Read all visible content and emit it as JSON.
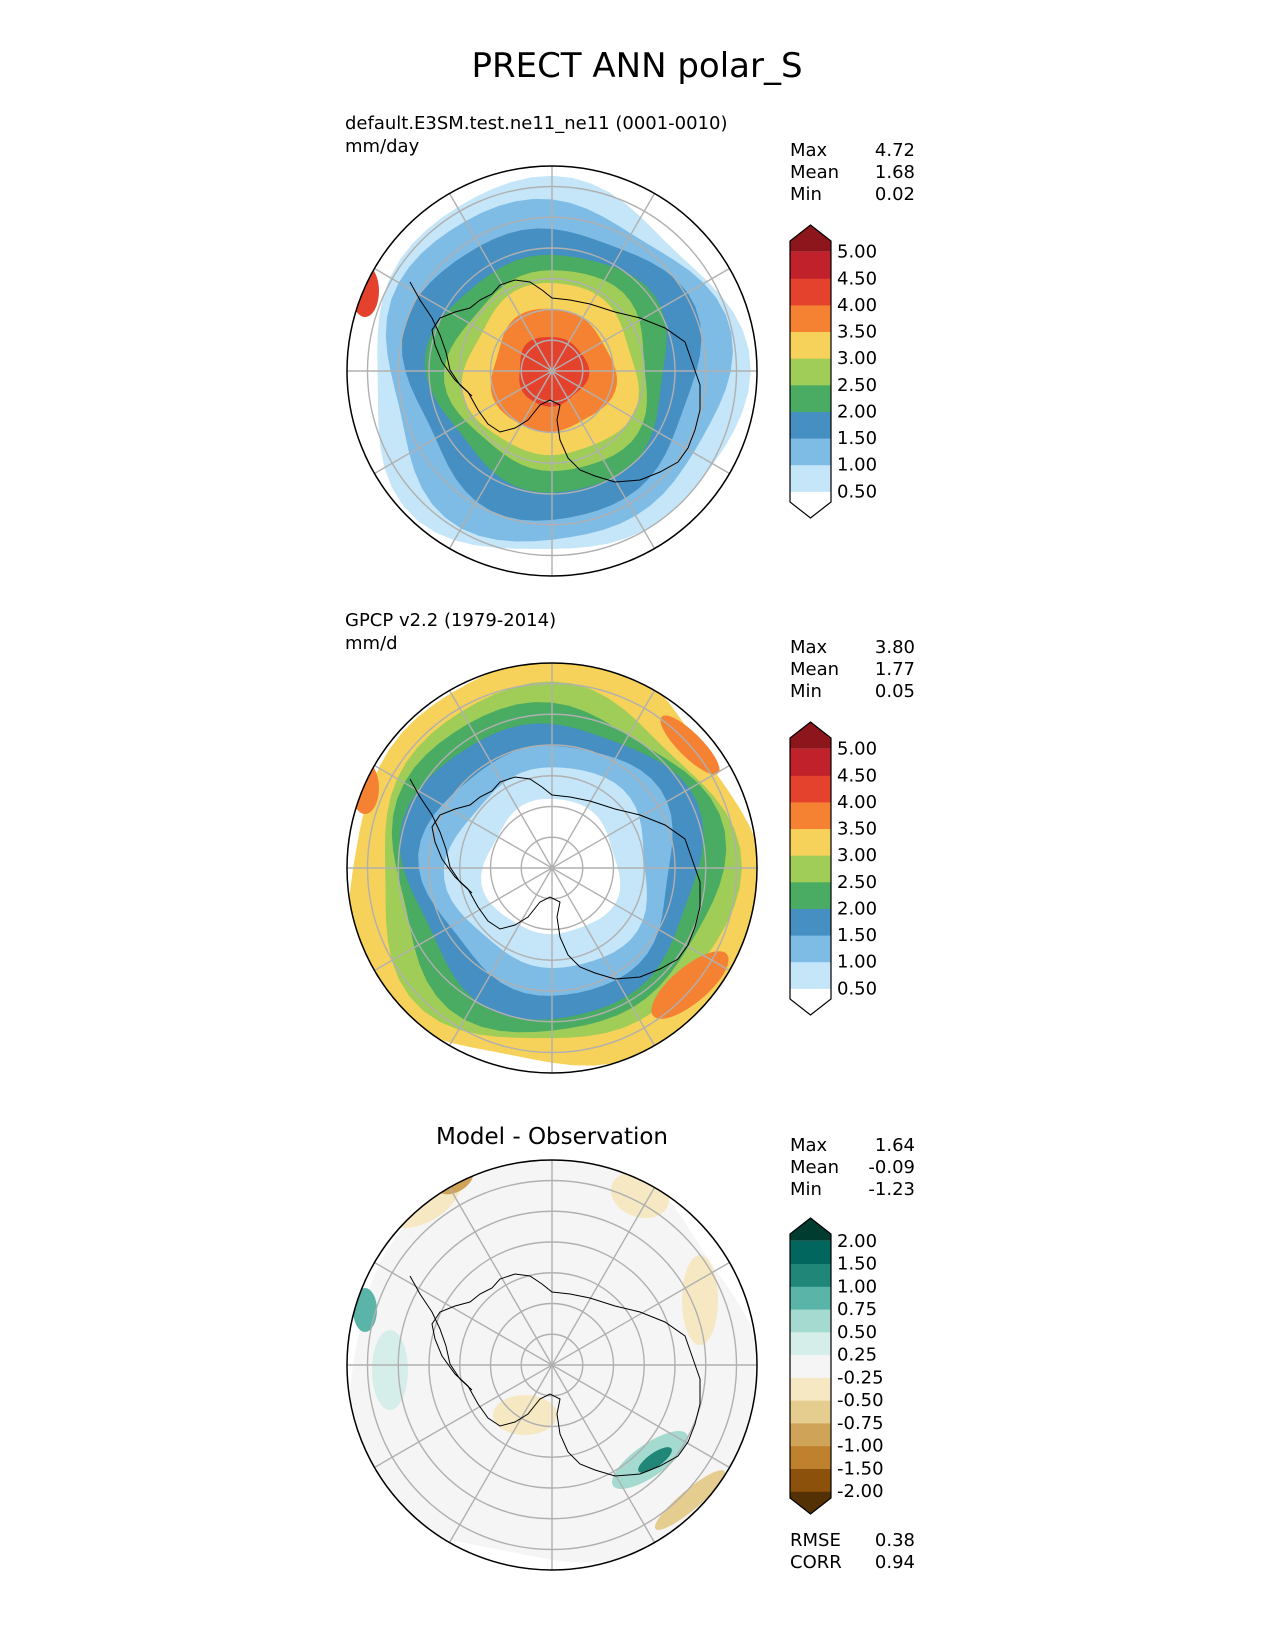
{
  "figure": {
    "title": "PRECT ANN polar_S"
  },
  "chart_data": [
    {
      "type": "heatmap",
      "projection": "south-polar-stereographic",
      "title": "default.E3SM.test.ne11_ne11 (0001-0010)",
      "units": "mm/day",
      "stats": [
        {
          "label": "Max",
          "value": "4.72"
        },
        {
          "label": "Mean",
          "value": "1.68"
        },
        {
          "label": "Min",
          "value": "0.02"
        }
      ],
      "colorbar": {
        "levels": [
          "0.50",
          "1.00",
          "1.50",
          "2.00",
          "2.50",
          "3.00",
          "3.50",
          "4.00",
          "4.50",
          "5.00"
        ],
        "colors": [
          "#ffffff",
          "#c4e6f8",
          "#7fbce5",
          "#458fc2",
          "#4aab62",
          "#9fcd57",
          "#f6d25a",
          "#f58233",
          "#e4422c",
          "#c0212b",
          "#8c161c"
        ]
      },
      "rings": [
        {
          "level": 0,
          "frac": 1.0
        },
        {
          "level": 1,
          "frac": 0.91
        },
        {
          "level": 2,
          "frac": 0.83
        },
        {
          "level": 3,
          "frac": 0.71
        },
        {
          "level": 4,
          "frac": 0.58
        },
        {
          "level": 5,
          "frac": 0.49
        },
        {
          "level": 6,
          "frac": 0.42
        },
        {
          "level": 7,
          "frac": 0.3
        },
        {
          "level": 8,
          "frac": 0.17
        }
      ]
    },
    {
      "type": "heatmap",
      "projection": "south-polar-stereographic",
      "title": "GPCP v2.2 (1979-2014)",
      "units": "mm/d",
      "stats": [
        {
          "label": "Max",
          "value": "3.80"
        },
        {
          "label": "Mean",
          "value": "1.77"
        },
        {
          "label": "Min",
          "value": "0.05"
        }
      ],
      "colorbar": {
        "levels": [
          "0.50",
          "1.00",
          "1.50",
          "2.00",
          "2.50",
          "3.00",
          "3.50",
          "4.00",
          "4.50",
          "5.00"
        ],
        "colors": [
          "#ffffff",
          "#c4e6f8",
          "#7fbce5",
          "#458fc2",
          "#4aab62",
          "#9fcd57",
          "#f6d25a",
          "#f58233",
          "#e4422c",
          "#c0212b",
          "#8c161c"
        ]
      },
      "rings": [
        {
          "level": 6,
          "frac": 1.0
        },
        {
          "level": 5,
          "frac": 0.87
        },
        {
          "level": 4,
          "frac": 0.8
        },
        {
          "level": 3,
          "frac": 0.72
        },
        {
          "level": 2,
          "frac": 0.61
        },
        {
          "level": 1,
          "frac": 0.49
        },
        {
          "level": 0,
          "frac": 0.33
        }
      ]
    },
    {
      "type": "heatmap",
      "projection": "south-polar-stereographic",
      "title": "Model - Observation",
      "stats": [
        {
          "label": "Max",
          "value": "1.64"
        },
        {
          "label": "Mean",
          "value": "-0.09"
        },
        {
          "label": "Min",
          "value": "-1.23"
        }
      ],
      "colorbar": {
        "levels": [
          "-2.00",
          "-1.50",
          "-1.00",
          "-0.75",
          "-0.50",
          "-0.25",
          "0.25",
          "0.50",
          "0.75",
          "1.00",
          "1.50",
          "2.00"
        ],
        "colors": [
          "#543005",
          "#8c510a",
          "#bf812d",
          "#d0a458",
          "#e5cc8f",
          "#f6e8c3",
          "#f5f5f5",
          "#d6eeea",
          "#a4dad0",
          "#5ab4a8",
          "#208678",
          "#01665e",
          "#003c30"
        ]
      },
      "rings": [
        {
          "level": 6,
          "frac": 1.0
        }
      ],
      "summary": [
        {
          "label": "RMSE",
          "value": "0.38"
        },
        {
          "label": "CORR",
          "value": "0.94"
        }
      ]
    }
  ]
}
